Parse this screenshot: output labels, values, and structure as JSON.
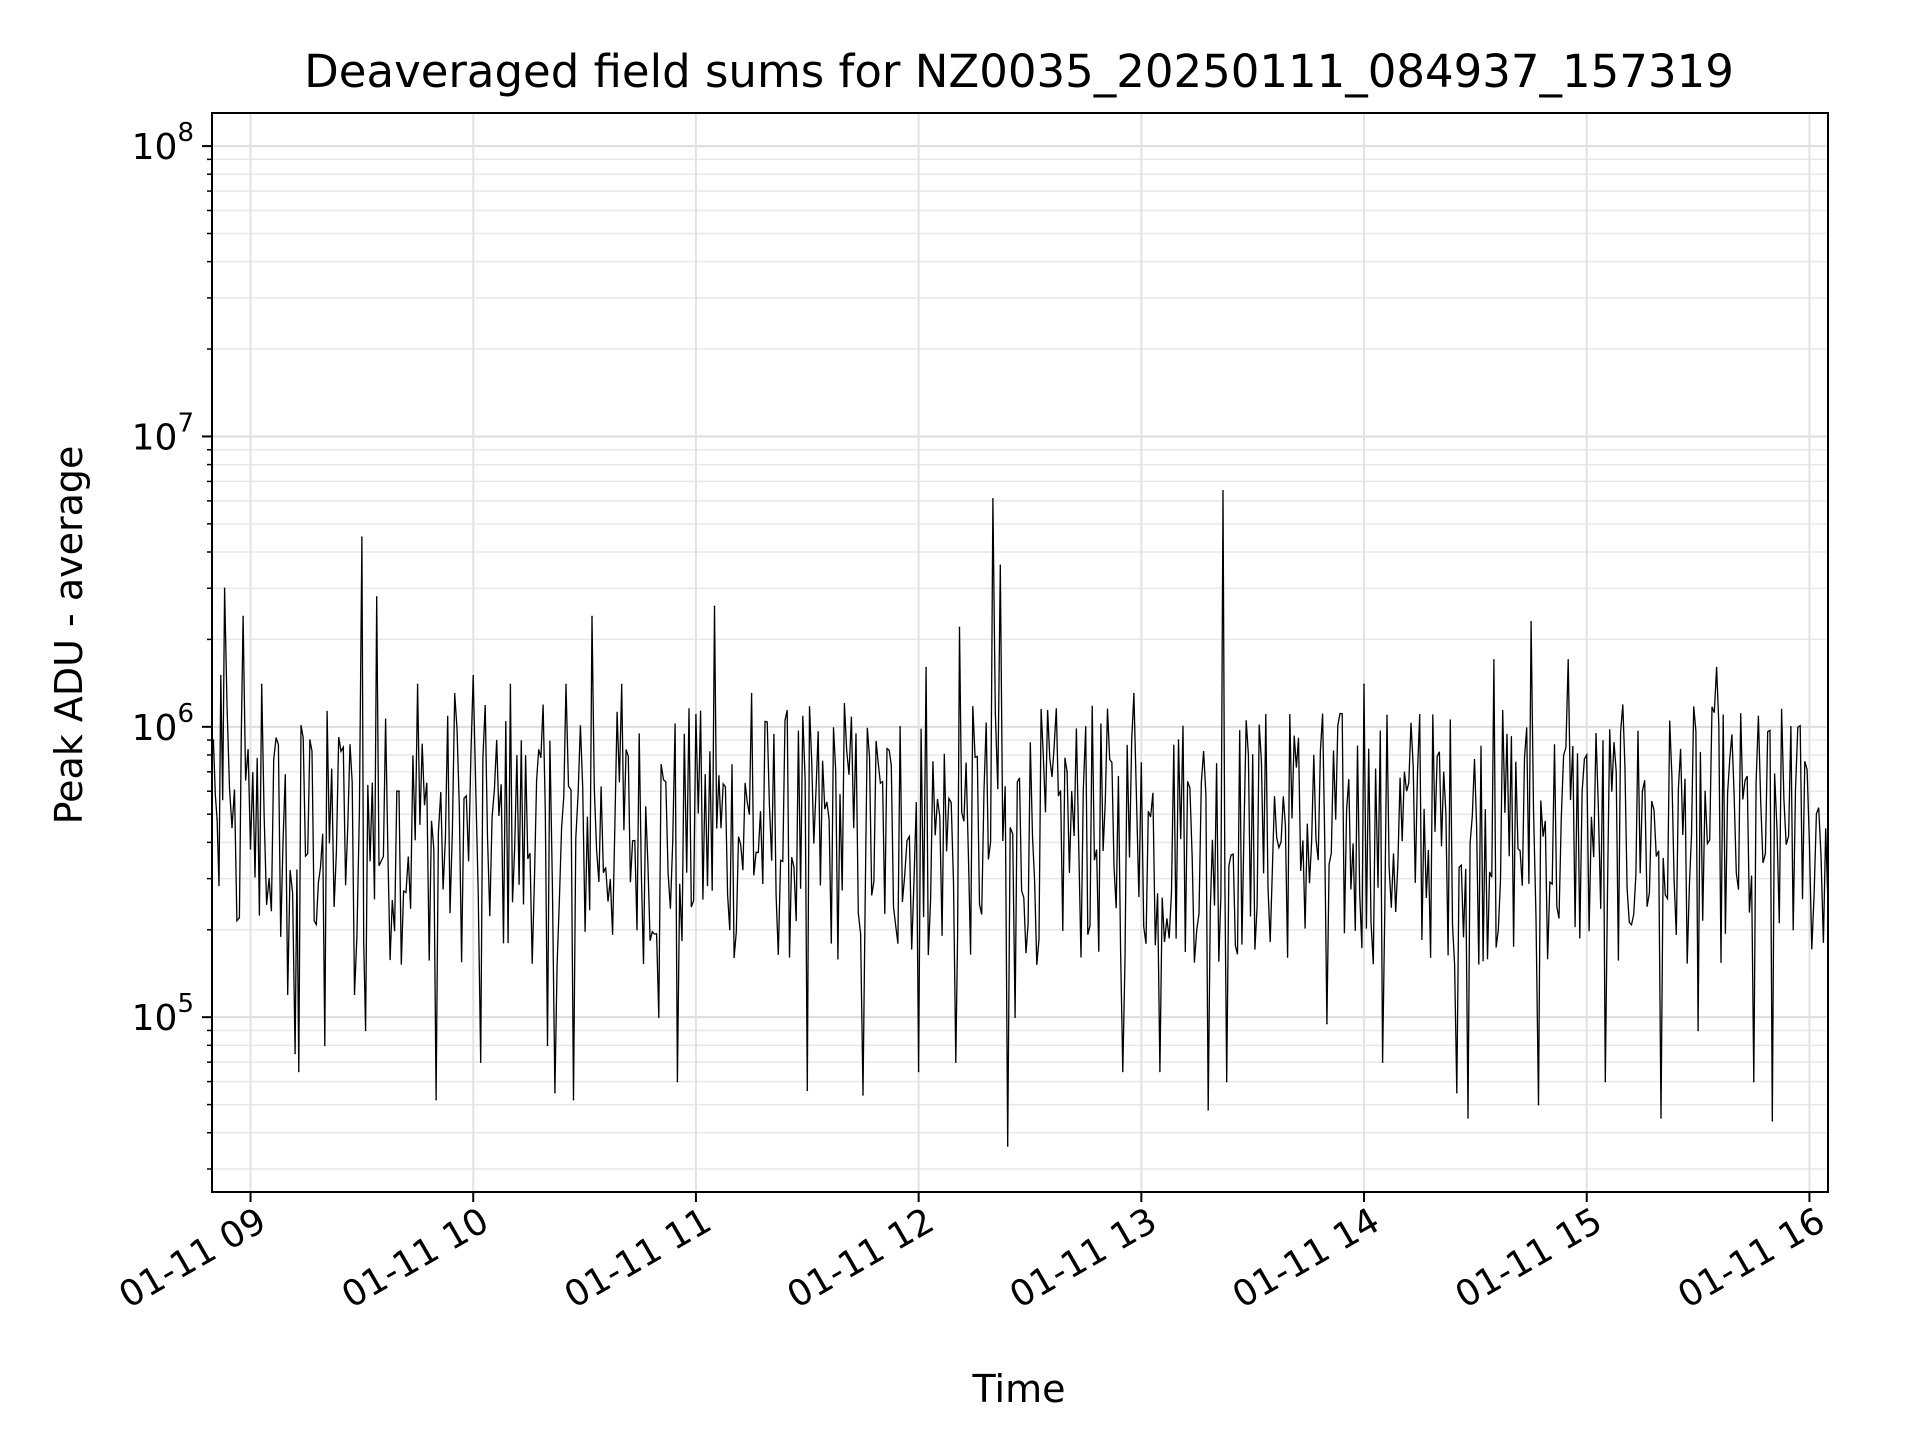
{
  "chart_data": {
    "type": "line",
    "title": "Deaveraged field sums for NZ0035_20250111_084937_157319",
    "xlabel": "Time",
    "ylabel": "Peak ADU - average",
    "yscale": "log",
    "ylim": [
      25000,
      130000000
    ],
    "xlim": [
      "2025-01-11 08:49:37",
      "2025-01-11 16:05:00"
    ],
    "grid": true,
    "legend": "none",
    "x_ticks": [
      {
        "value": "2025-01-11 09:00",
        "label": "01-11 09"
      },
      {
        "value": "2025-01-11 10:00",
        "label": "01-11 10"
      },
      {
        "value": "2025-01-11 11:00",
        "label": "01-11 11"
      },
      {
        "value": "2025-01-11 12:00",
        "label": "01-11 12"
      },
      {
        "value": "2025-01-11 13:00",
        "label": "01-11 13"
      },
      {
        "value": "2025-01-11 14:00",
        "label": "01-11 14"
      },
      {
        "value": "2025-01-11 15:00",
        "label": "01-11 15"
      },
      {
        "value": "2025-01-11 16:00",
        "label": "01-11 16"
      }
    ],
    "y_ticks": [
      {
        "value": 100000,
        "base": "10",
        "exp": "5"
      },
      {
        "value": 1000000,
        "base": "10",
        "exp": "6"
      },
      {
        "value": 10000000,
        "base": "10",
        "exp": "7"
      },
      {
        "value": 100000000,
        "base": "10",
        "exp": "8"
      }
    ],
    "series": [
      {
        "color": "#000000",
        "points": [
          [
            "2025-01-11 08:50",
            900000
          ],
          [
            "2025-01-11 08:51",
            480000
          ],
          [
            "2025-01-11 08:52",
            1500000
          ],
          [
            "2025-01-11 08:53",
            3000000
          ],
          [
            "2025-01-11 08:55",
            450000
          ],
          [
            "2025-01-11 08:57",
            220000
          ],
          [
            "2025-01-11 08:58",
            2400000
          ],
          [
            "2025-01-11 09:00",
            380000
          ],
          [
            "2025-01-11 09:03",
            1400000
          ],
          [
            "2025-01-11 09:05",
            300000
          ],
          [
            "2025-01-11 09:10",
            120000
          ],
          [
            "2025-01-11 09:12",
            75000
          ],
          [
            "2025-01-11 09:13",
            65000
          ],
          [
            "2025-01-11 09:16",
            900000
          ],
          [
            "2025-01-11 09:20",
            80000
          ],
          [
            "2025-01-11 09:25",
            850000
          ],
          [
            "2025-01-11 09:28",
            120000
          ],
          [
            "2025-01-11 09:30",
            4500000
          ],
          [
            "2025-01-11 09:31",
            90000
          ],
          [
            "2025-01-11 09:34",
            2800000
          ],
          [
            "2025-01-11 09:40",
            600000
          ],
          [
            "2025-01-11 09:45",
            1400000
          ],
          [
            "2025-01-11 09:50",
            52000
          ],
          [
            "2025-01-11 09:55",
            1300000
          ],
          [
            "2025-01-11 10:00",
            1500000
          ],
          [
            "2025-01-11 10:02",
            70000
          ],
          [
            "2025-01-11 10:10",
            1400000
          ],
          [
            "2025-01-11 10:20",
            80000
          ],
          [
            "2025-01-11 10:22",
            55000
          ],
          [
            "2025-01-11 10:25",
            1400000
          ],
          [
            "2025-01-11 10:27",
            52000
          ],
          [
            "2025-01-11 10:32",
            2400000
          ],
          [
            "2025-01-11 10:40",
            1400000
          ],
          [
            "2025-01-11 10:50",
            100000
          ],
          [
            "2025-01-11 10:55",
            60000
          ],
          [
            "2025-01-11 11:00",
            1100000
          ],
          [
            "2025-01-11 11:05",
            2600000
          ],
          [
            "2025-01-11 11:15",
            1300000
          ],
          [
            "2025-01-11 11:30",
            56000
          ],
          [
            "2025-01-11 11:40",
            1200000
          ],
          [
            "2025-01-11 11:45",
            54000
          ],
          [
            "2025-01-11 11:55",
            1000000
          ],
          [
            "2025-01-11 12:00",
            65000
          ],
          [
            "2025-01-11 12:02",
            1600000
          ],
          [
            "2025-01-11 12:10",
            70000
          ],
          [
            "2025-01-11 12:11",
            2200000
          ],
          [
            "2025-01-11 12:20",
            6100000
          ],
          [
            "2025-01-11 12:22",
            3600000
          ],
          [
            "2025-01-11 12:24",
            36000
          ],
          [
            "2025-01-11 12:26",
            100000
          ],
          [
            "2025-01-11 12:40",
            700000
          ],
          [
            "2025-01-11 12:45",
            1000000
          ],
          [
            "2025-01-11 12:55",
            65000
          ],
          [
            "2025-01-11 12:58",
            1300000
          ],
          [
            "2025-01-11 13:00",
            750000
          ],
          [
            "2025-01-11 13:05",
            65000
          ],
          [
            "2025-01-11 13:10",
            900000
          ],
          [
            "2025-01-11 13:18",
            48000
          ],
          [
            "2025-01-11 13:22",
            6500000
          ],
          [
            "2025-01-11 13:23",
            60000
          ],
          [
            "2025-01-11 13:30",
            800000
          ],
          [
            "2025-01-11 13:40",
            1100000
          ],
          [
            "2025-01-11 13:50",
            95000
          ],
          [
            "2025-01-11 14:00",
            1400000
          ],
          [
            "2025-01-11 14:05",
            70000
          ],
          [
            "2025-01-11 14:15",
            1100000
          ],
          [
            "2025-01-11 14:25",
            55000
          ],
          [
            "2025-01-11 14:28",
            45000
          ],
          [
            "2025-01-11 14:35",
            1700000
          ],
          [
            "2025-01-11 14:45",
            2300000
          ],
          [
            "2025-01-11 14:47",
            50000
          ],
          [
            "2025-01-11 14:55",
            1700000
          ],
          [
            "2025-01-11 15:00",
            800000
          ],
          [
            "2025-01-11 15:05",
            60000
          ],
          [
            "2025-01-11 15:15",
            600000
          ],
          [
            "2025-01-11 15:20",
            45000
          ],
          [
            "2025-01-11 15:30",
            90000
          ],
          [
            "2025-01-11 15:35",
            1600000
          ],
          [
            "2025-01-11 15:45",
            60000
          ],
          [
            "2025-01-11 15:50",
            44000
          ],
          [
            "2025-01-11 15:55",
            1000000
          ],
          [
            "2025-01-11 16:00",
            400000
          ],
          [
            "2025-01-11 16:05",
            240000
          ]
        ]
      }
    ]
  }
}
